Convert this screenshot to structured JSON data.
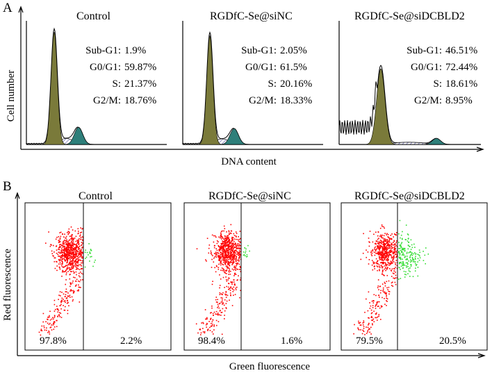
{
  "figure": {
    "panel_a_label": "A",
    "panel_b_label": "B"
  },
  "colors": {
    "g1_fill": "#7a7a3a",
    "g2m_fill": "#2e7f7a",
    "s_hatch": "#4a4aa0",
    "red_events": "#ff0000",
    "green_events": "#33dd33"
  },
  "chart_data": [
    {
      "type": "histogram",
      "panel": "A",
      "description_xlabel": "DNA content",
      "ylabel": "Cell number",
      "xlabel": "DNA content",
      "subplots": [
        {
          "title": "Control",
          "stats": [
            {
              "label": "Sub-G1:",
              "value": "1.9%",
              "number": 1.9
            },
            {
              "label": "G0/G1:",
              "value": "59.87%",
              "number": 59.87
            },
            {
              "label": "S:",
              "value": "21.37%",
              "number": 21.37
            },
            {
              "label": "G2/M:",
              "value": "18.76%",
              "number": 18.76
            }
          ],
          "g1_peak_rel": 0.92,
          "g2_peak_rel": 0.14,
          "subg1_rel": 0.01
        },
        {
          "title": "RGDfC-Se@siNC",
          "stats": [
            {
              "label": "Sub-G1:",
              "value": "2.05%",
              "number": 2.05
            },
            {
              "label": "G0/G1:",
              "value": "61.5%",
              "number": 61.5
            },
            {
              "label": "S:",
              "value": "20.16%",
              "number": 20.16
            },
            {
              "label": "G2/M:",
              "value": "18.33%",
              "number": 18.33
            }
          ],
          "g1_peak_rel": 0.89,
          "g2_peak_rel": 0.13,
          "subg1_rel": 0.01
        },
        {
          "title": "RGDfC-Se@siDCBLD2",
          "stats": [
            {
              "label": "Sub-G1:",
              "value": "46.51%",
              "number": 46.51
            },
            {
              "label": "G0/G1:",
              "value": "72.44%",
              "number": 72.44
            },
            {
              "label": "S:",
              "value": "18.61%",
              "number": 18.61
            },
            {
              "label": "G2/M:",
              "value": "8.95%",
              "number": 8.95
            }
          ],
          "g1_peak_rel": 0.62,
          "g2_peak_rel": 0.05,
          "subg1_rel": 0.2
        }
      ]
    },
    {
      "type": "scatter",
      "panel": "B",
      "xlabel": "Green fluorescence",
      "ylabel": "Red fluorescence",
      "subplots": [
        {
          "title": "Control",
          "left_pct": "97.8%",
          "right_pct": "2.2%",
          "left_value": 97.8,
          "right_value": 2.2
        },
        {
          "title": "RGDfC-Se@siNC",
          "left_pct": "98.4%",
          "right_pct": "1.6%",
          "left_value": 98.4,
          "right_value": 1.6
        },
        {
          "title": "RGDfC-Se@siDCBLD2",
          "left_pct": "79.5%",
          "right_pct": "20.5%",
          "left_value": 79.5,
          "right_value": 20.5
        }
      ]
    }
  ]
}
